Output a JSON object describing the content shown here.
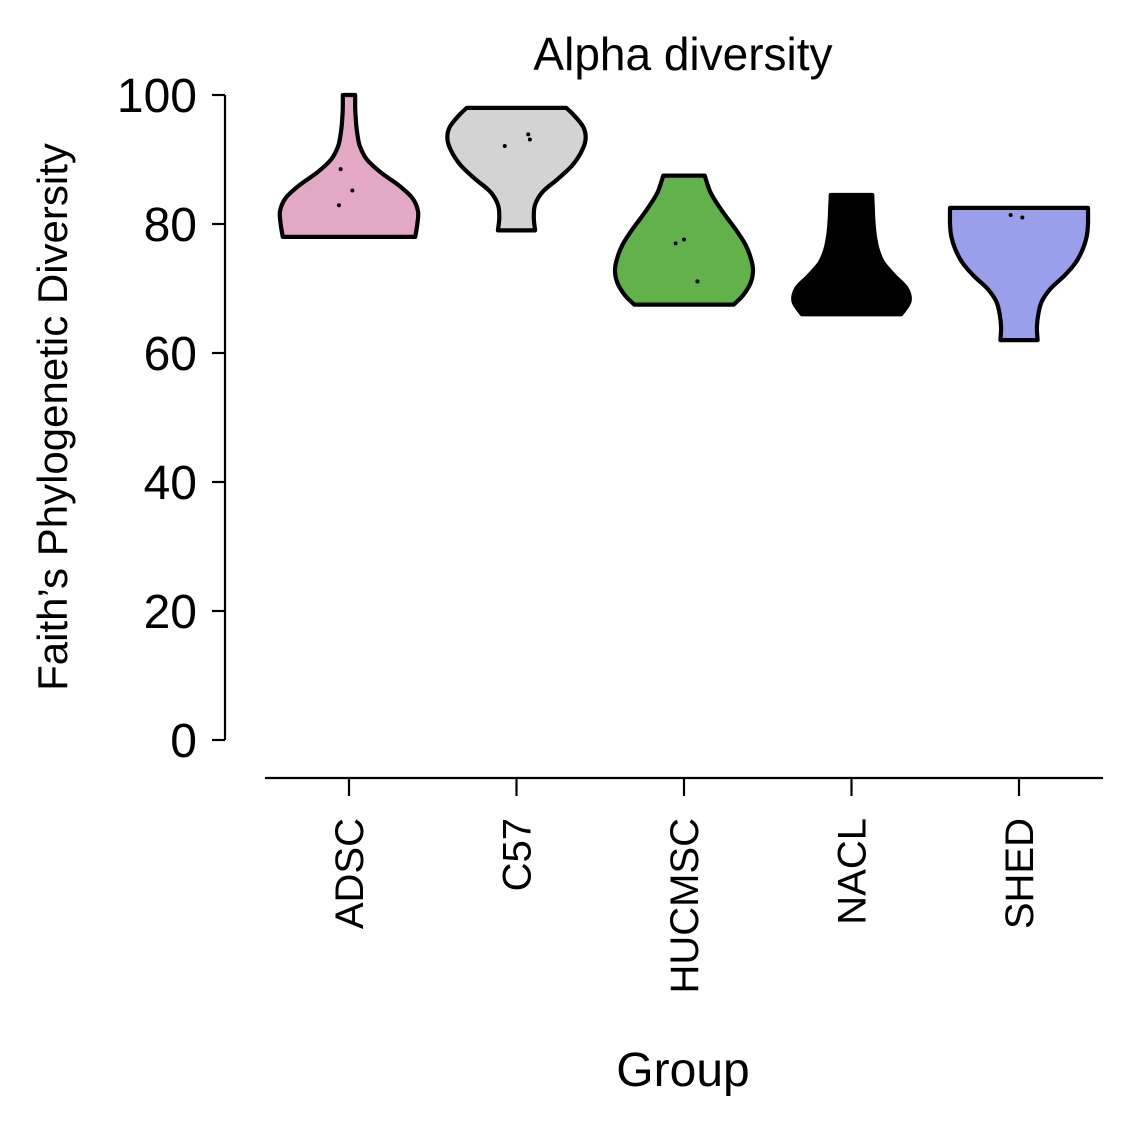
{
  "chart_data": {
    "type": "violin",
    "title": "Alpha diversity",
    "xlabel": "Group",
    "ylabel": "Faith’s Phylogenetic Diversity",
    "ylim": [
      0,
      100
    ],
    "yticks": [
      0,
      20,
      40,
      60,
      80,
      100
    ],
    "categories": [
      "ADSC",
      "C57",
      "HUCMSC",
      "NACL",
      "SHED"
    ],
    "groups": [
      {
        "name": "ADSC",
        "color": "#e2a8c5",
        "min": 78,
        "max": 100,
        "density": [
          [
            78,
            0.96
          ],
          [
            80,
            0.99
          ],
          [
            82,
            1.0
          ],
          [
            84,
            0.92
          ],
          [
            86,
            0.72
          ],
          [
            88,
            0.46
          ],
          [
            90,
            0.26
          ],
          [
            92,
            0.16
          ],
          [
            94,
            0.12
          ],
          [
            96,
            0.1
          ],
          [
            98,
            0.09
          ],
          [
            100,
            0.09
          ]
        ],
        "points": [
          [
            -0.05,
            88.5
          ],
          [
            0.02,
            85.2
          ],
          [
            -0.06,
            82.9
          ]
        ]
      },
      {
        "name": "C57",
        "color": "#d3d3d3",
        "min": 79,
        "max": 98,
        "density": [
          [
            79,
            0.27
          ],
          [
            81,
            0.25
          ],
          [
            83,
            0.27
          ],
          [
            85,
            0.38
          ],
          [
            87,
            0.6
          ],
          [
            89,
            0.8
          ],
          [
            91,
            0.93
          ],
          [
            93,
            1.0
          ],
          [
            95,
            0.97
          ],
          [
            97,
            0.82
          ],
          [
            98,
            0.72
          ]
        ],
        "points": [
          [
            -0.07,
            92.1
          ],
          [
            0.07,
            93.9
          ],
          [
            0.08,
            93.1
          ]
        ]
      },
      {
        "name": "HUCMSC",
        "color": "#63b14b",
        "min": 67.5,
        "max": 87.5,
        "density": [
          [
            67.5,
            0.72
          ],
          [
            69,
            0.86
          ],
          [
            71,
            0.97
          ],
          [
            73,
            1.0
          ],
          [
            75,
            0.96
          ],
          [
            77,
            0.88
          ],
          [
            79,
            0.76
          ],
          [
            81,
            0.62
          ],
          [
            83,
            0.49
          ],
          [
            85,
            0.38
          ],
          [
            87.5,
            0.3
          ]
        ],
        "points": [
          [
            -0.05,
            77.0
          ],
          [
            0.0,
            77.6
          ],
          [
            0.08,
            71.1
          ]
        ]
      },
      {
        "name": "NACL",
        "color": "#000000",
        "min": 66,
        "max": 84.5,
        "density": [
          [
            66,
            0.72
          ],
          [
            68,
            0.84
          ],
          [
            70,
            0.8
          ],
          [
            72,
            0.62
          ],
          [
            74,
            0.46
          ],
          [
            76,
            0.38
          ],
          [
            78,
            0.34
          ],
          [
            80,
            0.32
          ],
          [
            82,
            0.31
          ],
          [
            84.5,
            0.3
          ]
        ],
        "points": []
      },
      {
        "name": "SHED",
        "color": "#9b9eea",
        "min": 62,
        "max": 82.5,
        "density": [
          [
            62,
            0.27
          ],
          [
            64,
            0.26
          ],
          [
            66,
            0.28
          ],
          [
            68,
            0.33
          ],
          [
            70,
            0.46
          ],
          [
            72,
            0.66
          ],
          [
            74,
            0.82
          ],
          [
            76,
            0.92
          ],
          [
            78,
            0.98
          ],
          [
            80,
            1.0
          ],
          [
            82.5,
            1.0
          ]
        ],
        "points": [
          [
            -0.05,
            81.4
          ],
          [
            0.02,
            81.0
          ]
        ]
      }
    ],
    "grid": false,
    "legend": "none"
  }
}
